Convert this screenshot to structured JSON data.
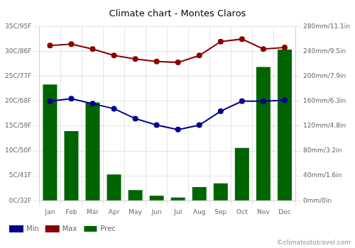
{
  "chart_data": {
    "type": "bar",
    "title": "Climate chart - Montes Claros",
    "categories": [
      "Jan",
      "Feb",
      "Mar",
      "Apr",
      "May",
      "Jun",
      "Jul",
      "Aug",
      "Sep",
      "Oct",
      "Nov",
      "Dec"
    ],
    "series": [
      {
        "name": "Prec",
        "type": "bar",
        "axis": "y2",
        "color": "#006400",
        "values": [
          187,
          112,
          158,
          42,
          17,
          8,
          5,
          22,
          28,
          85,
          215,
          243
        ]
      },
      {
        "name": "Min",
        "type": "line",
        "marker": "circle",
        "line_style": "solid",
        "color": "#00008B",
        "values": [
          20.0,
          20.5,
          19.5,
          18.5,
          16.5,
          15.2,
          14.3,
          15.2,
          18.0,
          20.0,
          20.0,
          20.2
        ]
      },
      {
        "name": "Max",
        "type": "line",
        "marker": "circle",
        "line_style": "solid",
        "color": "#8B0000",
        "values": [
          31.2,
          31.5,
          30.5,
          29.2,
          28.5,
          28.0,
          27.8,
          29.2,
          32.0,
          32.5,
          30.5,
          30.8
        ]
      }
    ],
    "ylim": [
      0,
      35
    ],
    "yticks": [
      {
        "value": 0,
        "label": "0C/32F"
      },
      {
        "value": 5,
        "label": "5C/41F"
      },
      {
        "value": 10,
        "label": "10C/50F"
      },
      {
        "value": 15,
        "label": "15C/59F"
      },
      {
        "value": 20,
        "label": "20C/68F"
      },
      {
        "value": 25,
        "label": "25C/77F"
      },
      {
        "value": 30,
        "label": "30C/86F"
      },
      {
        "value": 35,
        "label": "35C/95F"
      }
    ],
    "y2lim": [
      0,
      280
    ],
    "y2ticks": [
      {
        "value": 0,
        "label": "0mm/0in"
      },
      {
        "value": 40,
        "label": "40mm/1.6in"
      },
      {
        "value": 80,
        "label": "80mm/3.2in"
      },
      {
        "value": 120,
        "label": "120mm/4.8in"
      },
      {
        "value": 160,
        "label": "160mm/6.3in"
      },
      {
        "value": 200,
        "label": "200mm/7.9in"
      },
      {
        "value": 240,
        "label": "240mm/9.5in"
      },
      {
        "value": 280,
        "label": "280mm/11.1in"
      }
    ],
    "grid": true,
    "legend": "lower left",
    "annotations": [
      "©climatestotravel.com"
    ]
  }
}
